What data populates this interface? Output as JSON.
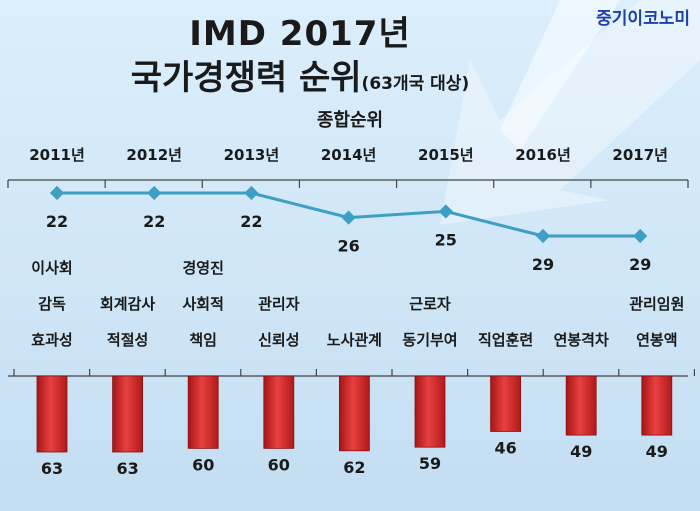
{
  "brand": "중기이코노미",
  "title_line1": "IMD 2017년",
  "title_line2": "국가경쟁력 순위",
  "title_sub": "(63개국 대상)",
  "section_label": "종합순위",
  "colors": {
    "line": "#3d9fc4",
    "bar": "#d42a2a",
    "axis": "#444444"
  },
  "chart_data": [
    {
      "type": "line",
      "title": "종합순위",
      "x": [
        "2011년",
        "2012년",
        "2013년",
        "2014년",
        "2015년",
        "2016년",
        "2017년"
      ],
      "series": [
        {
          "values": [
            22,
            22,
            22,
            26,
            25,
            29,
            29
          ]
        }
      ],
      "ylim": [
        20,
        31
      ],
      "inverted_y": true,
      "grid": false
    },
    {
      "type": "bar",
      "categories": [
        [
          "이사회",
          "감독",
          "효과성"
        ],
        [
          "회계감사",
          "적절성"
        ],
        [
          "경영진",
          "사회적",
          "책임"
        ],
        [
          "관리자",
          "신뢰성"
        ],
        [
          "노사관계"
        ],
        [
          "근로자",
          "동기부여"
        ],
        [
          "직업훈련"
        ],
        [
          "연봉격차"
        ],
        [
          "관리임원",
          "연봉액"
        ]
      ],
      "values": [
        63,
        63,
        60,
        60,
        62,
        59,
        46,
        49,
        49
      ],
      "ylim": [
        0,
        63
      ],
      "grid": false
    }
  ]
}
